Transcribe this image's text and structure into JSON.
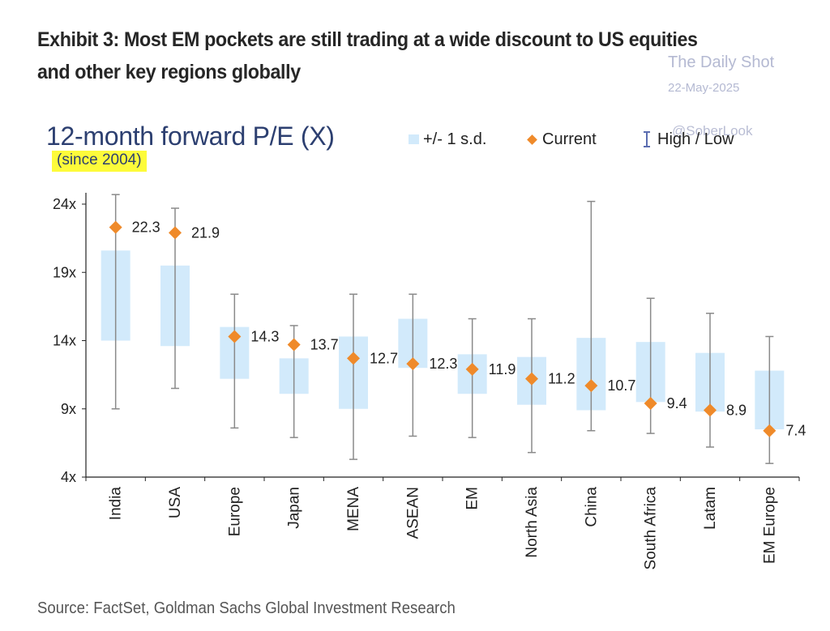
{
  "header": {
    "exhibit_title_line1": "Exhibit 3: Most EM pockets are still trading at a wide discount to US equities",
    "exhibit_title_line2": "and other key regions globally"
  },
  "watermark": {
    "name": "The Daily Shot",
    "date": "22-May-2025",
    "handle": "@SoberLook"
  },
  "legend": {
    "sd_label": "+/- 1 s.d.",
    "current_label": "Current",
    "highlow_label": "High / Low"
  },
  "source": "Source: FactSet, Goldman Sachs Global Investment Research",
  "colors": {
    "sd_band": "#d2eafb",
    "current_marker": "#ef8a2a",
    "whisker": "#8a8a8a",
    "title": "#2c3f70",
    "highlight": "#fdfb3a"
  },
  "chart_data": {
    "type": "range",
    "title": "12-month forward P/E (X)",
    "subtitle": "(since 2004)",
    "categories": [
      "India",
      "USA",
      "Europe",
      "Japan",
      "MENA",
      "ASEAN",
      "EM",
      "North Asia",
      "China",
      "South Africa",
      "Latam",
      "EM Europe"
    ],
    "current": [
      22.3,
      21.9,
      14.3,
      13.7,
      12.7,
      12.3,
      11.9,
      11.2,
      10.7,
      9.4,
      8.9,
      7.4
    ],
    "current_labels": [
      "22.3",
      "21.9",
      "14.3",
      "13.7",
      "12.7",
      "12.3",
      "11.9",
      "11.2",
      "10.7",
      "9.4",
      "8.9",
      "7.4"
    ],
    "sd_low": [
      14.0,
      13.6,
      11.2,
      10.1,
      9.0,
      12.0,
      10.1,
      9.3,
      8.9,
      9.5,
      8.8,
      7.5
    ],
    "sd_high": [
      20.6,
      19.5,
      15.0,
      12.7,
      14.3,
      15.6,
      13.0,
      12.8,
      14.2,
      13.9,
      13.1,
      11.8
    ],
    "high": [
      24.7,
      23.7,
      17.4,
      15.1,
      17.4,
      17.4,
      15.6,
      15.6,
      24.2,
      17.1,
      16.0,
      14.3
    ],
    "low": [
      9.0,
      10.5,
      7.6,
      6.9,
      5.3,
      7.0,
      6.9,
      5.8,
      7.4,
      7.2,
      6.2,
      5.0
    ],
    "ylim": [
      4,
      24
    ],
    "yticks": [
      4,
      9,
      14,
      19,
      24
    ],
    "ytick_labels": [
      "4x",
      "9x",
      "14x",
      "19x",
      "24x"
    ],
    "xlabel": "",
    "ylabel": "",
    "grid": false,
    "legend_position": "top"
  }
}
